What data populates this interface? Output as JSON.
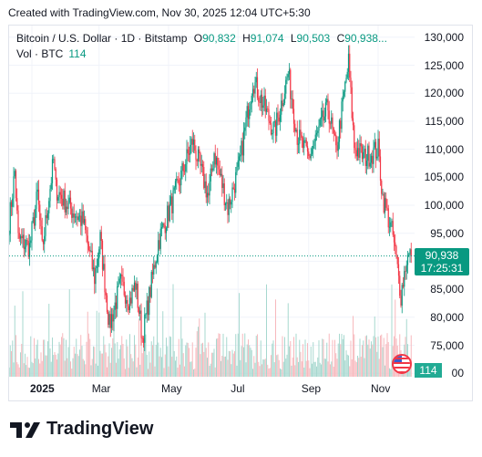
{
  "header": {
    "created": "Created with TradingView.com, Nov 30, 2025 12:04 UTC+5:30"
  },
  "legend": {
    "symbol": "Bitcoin / U.S. Dollar · 1D · Bitstamp",
    "o_label": "O",
    "o_value": "90,832",
    "h_label": "H",
    "h_value": "91,074",
    "l_label": "L",
    "l_value": "90,503",
    "c_label": "C",
    "c_value": "90,938...",
    "vol_label": "Vol · BTC",
    "vol_value": "114"
  },
  "price_tag": {
    "price": "90,938",
    "countdown": "17:25:31"
  },
  "volume_tag": "114",
  "brand": {
    "name": "TradingView"
  },
  "colors": {
    "up": "#089981",
    "down": "#f23645",
    "vol_up": "#a7d8cf",
    "vol_down": "#f7b9bd"
  },
  "chart_data": {
    "type": "candlestick",
    "symbol": "BTC/USD",
    "exchange": "Bitstamp",
    "interval": "1D",
    "y_axis": {
      "ticks": [
        130000,
        125000,
        120000,
        115000,
        110000,
        105000,
        100000,
        95000,
        90000,
        85000,
        80000,
        75000,
        70000
      ],
      "tick_labels": [
        "130,000",
        "125,000",
        "120,000",
        "115,000",
        "110,000",
        "105,000",
        "100,000",
        "95,000",
        "90,000",
        "85,000",
        "80,000",
        "75,000",
        "70,000"
      ],
      "range": [
        69000,
        132000
      ]
    },
    "x_axis": {
      "labels": [
        "2025",
        "Mar",
        "May",
        "Jul",
        "Sep",
        "Nov"
      ],
      "label_dates": [
        "2025-01-01",
        "2025-03-01",
        "2025-05-01",
        "2025-07-01",
        "2025-09-01",
        "2025-11-01"
      ],
      "range": [
        "2024-12-12",
        "2025-12-06"
      ]
    },
    "last_price": 90938,
    "close_path": [
      [
        "2024-12-12",
        97000
      ],
      [
        "2024-12-17",
        106000
      ],
      [
        "2024-12-20",
        94000
      ],
      [
        "2024-12-30",
        92500
      ],
      [
        "2025-01-06",
        102000
      ],
      [
        "2025-01-10",
        92000
      ],
      [
        "2025-01-20",
        108000
      ],
      [
        "2025-01-22",
        103000
      ],
      [
        "2025-02-01",
        100000
      ],
      [
        "2025-02-15",
        97000
      ],
      [
        "2025-02-25",
        87000
      ],
      [
        "2025-03-02",
        94000
      ],
      [
        "2025-03-10",
        78500
      ],
      [
        "2025-03-20",
        86000
      ],
      [
        "2025-03-28",
        83000
      ],
      [
        "2025-04-02",
        86000
      ],
      [
        "2025-04-08",
        76300
      ],
      [
        "2025-04-22",
        93500
      ],
      [
        "2025-05-10",
        104000
      ],
      [
        "2025-05-22",
        111500
      ],
      [
        "2025-06-05",
        101500
      ],
      [
        "2025-06-10",
        109500
      ],
      [
        "2025-06-22",
        99500
      ],
      [
        "2025-07-02",
        107000
      ],
      [
        "2025-07-14",
        122500
      ],
      [
        "2025-08-02",
        113000
      ],
      [
        "2025-08-14",
        123500
      ],
      [
        "2025-08-22",
        112500
      ],
      [
        "2025-09-01",
        108500
      ],
      [
        "2025-09-18",
        117500
      ],
      [
        "2025-09-25",
        109500
      ],
      [
        "2025-10-06",
        125500
      ],
      [
        "2025-10-11",
        110500
      ],
      [
        "2025-10-20",
        108500
      ],
      [
        "2025-11-01",
        110000
      ],
      [
        "2025-11-05",
        101500
      ],
      [
        "2025-11-14",
        94500
      ],
      [
        "2025-11-21",
        84000
      ],
      [
        "2025-11-26",
        90500
      ],
      [
        "2025-11-30",
        90938
      ]
    ],
    "volume": {
      "series": "Vol · BTC",
      "last": 114
    },
    "grid": true,
    "legend_position": "top-left"
  }
}
